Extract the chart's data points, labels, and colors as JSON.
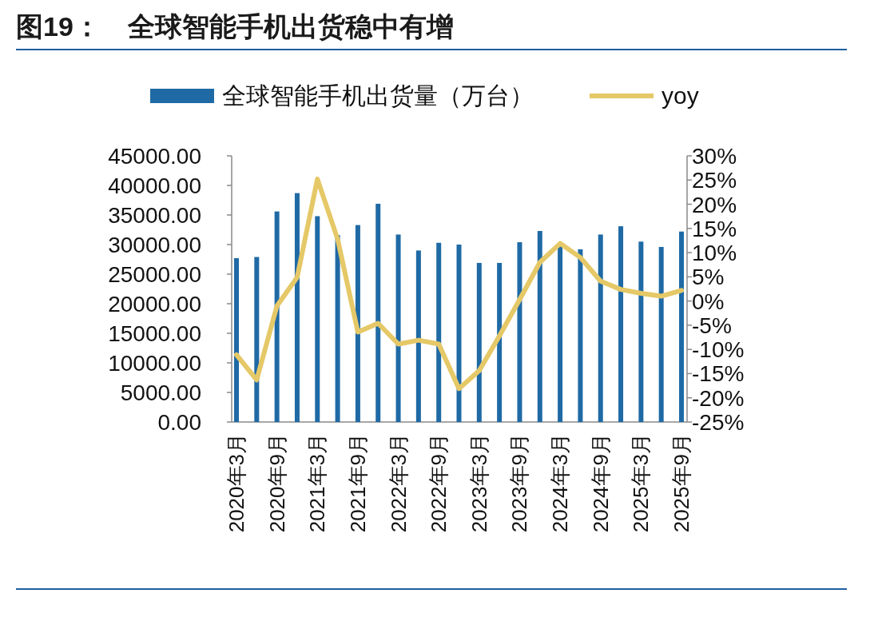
{
  "chart_data": {
    "type": "bar",
    "title": "图19：　全球智能手机出货稳中有增",
    "categories": [
      "2020年3月",
      null,
      "2020年9月",
      null,
      "2021年3月",
      null,
      "2021年9月",
      null,
      "2022年3月",
      null,
      "2022年9月",
      null,
      "2023年3月",
      null,
      "2023年9月",
      null,
      "2024年3月",
      null,
      "2024年9月",
      null,
      "2025年3月",
      null,
      "2025年9月"
    ],
    "series": [
      {
        "name": "全球智能手机出货量（万台）",
        "color": "#1f6aa5",
        "values": [
          27700,
          27900,
          35600,
          38700,
          34800,
          31600,
          33300,
          36900,
          31700,
          29000,
          30300,
          30000,
          26900,
          26900,
          30400,
          32300,
          29700,
          29200,
          31700,
          33100,
          30500,
          29600,
          32200
        ]
      },
      {
        "name": "yoy",
        "type": "line",
        "axis": "y2",
        "color": "#e5c867",
        "values": [
          -11.1,
          -16.3,
          -1.0,
          4.9,
          25.2,
          12.8,
          -6.4,
          -4.6,
          -8.9,
          -8.1,
          -8.9,
          -18.1,
          -14.4,
          -7.2,
          0.3,
          8.0,
          11.9,
          9.0,
          4.1,
          2.4,
          1.6,
          1.0,
          2.2
        ]
      }
    ],
    "ylim": [
      0,
      45000
    ],
    "yticks": [
      {
        "value": 0,
        "label": "0.00"
      },
      {
        "value": 5000,
        "label": "5000.00"
      },
      {
        "value": 10000,
        "label": "10000.00"
      },
      {
        "value": 15000,
        "label": "15000.00"
      },
      {
        "value": 20000,
        "label": "20000.00"
      },
      {
        "value": 25000,
        "label": "25000.00"
      },
      {
        "value": 30000,
        "label": "30000.00"
      },
      {
        "value": 35000,
        "label": "35000.00"
      },
      {
        "value": 40000,
        "label": "40000.00"
      },
      {
        "value": 45000,
        "label": "45000.00"
      }
    ],
    "y2lim": [
      -25,
      30
    ],
    "y2ticks": [
      {
        "value": -25,
        "label": "-25%"
      },
      {
        "value": -20,
        "label": "-20%"
      },
      {
        "value": -15,
        "label": "-15%"
      },
      {
        "value": -10,
        "label": "-10%"
      },
      {
        "value": -5,
        "label": "-5%"
      },
      {
        "value": 0,
        "label": "0%"
      },
      {
        "value": 5,
        "label": "5%"
      },
      {
        "value": 10,
        "label": "10%"
      },
      {
        "value": 15,
        "label": "15%"
      },
      {
        "value": 20,
        "label": "20%"
      },
      {
        "value": 25,
        "label": "25%"
      },
      {
        "value": 30,
        "label": "30%"
      }
    ],
    "legend": "top",
    "grid": false,
    "line_style": "solid",
    "marker": "none"
  }
}
